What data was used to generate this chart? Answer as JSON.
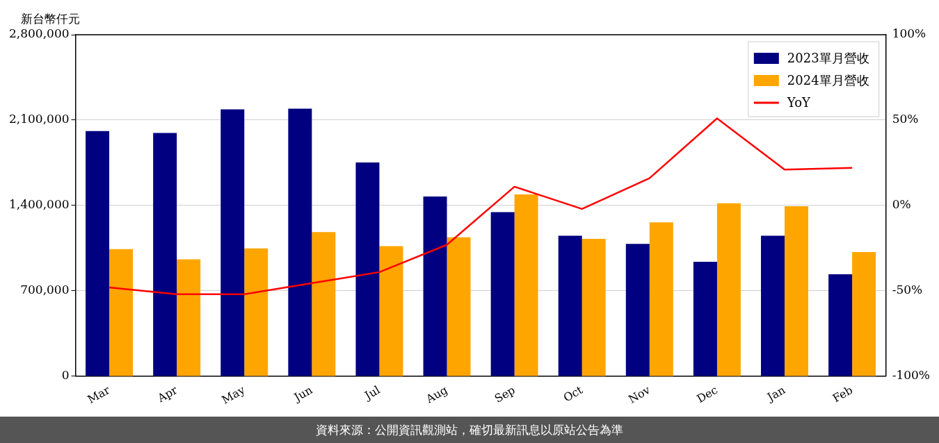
{
  "chart_data": {
    "type": "bar",
    "ylabel": "新台幣仟元",
    "categories": [
      "Mar",
      "Apr",
      "May",
      "Jun",
      "Jul",
      "Aug",
      "Sep",
      "Oct",
      "Nov",
      "Dec",
      "Jan",
      "Feb"
    ],
    "series": [
      {
        "name": "2023單月營收",
        "color": "#000080",
        "values": [
          2010000,
          1994000,
          2188000,
          2194000,
          1752000,
          1473000,
          1345000,
          1152000,
          1085000,
          939000,
          1152000,
          836000
        ]
      },
      {
        "name": "2024單月營收",
        "color": "#ffa500",
        "values": [
          1042000,
          958000,
          1048000,
          1182000,
          1067000,
          1139000,
          1491000,
          1127000,
          1261000,
          1418000,
          1394000,
          1018000
        ]
      },
      {
        "name": "YoY",
        "type": "line",
        "axis": "y2",
        "color": "#ff0000",
        "values": [
          -48,
          -52,
          -52,
          -45.5,
          -39,
          -23,
          11,
          -2,
          16,
          51,
          21,
          22
        ]
      }
    ],
    "ylim": [
      0,
      2800000
    ],
    "yticks": [
      {
        "value": 0,
        "label": "0"
      },
      {
        "value": 700000,
        "label": "700,000"
      },
      {
        "value": 1400000,
        "label": "1,400,000"
      },
      {
        "value": 2100000,
        "label": "2,100,000"
      },
      {
        "value": 2800000,
        "label": "2,800,000"
      }
    ],
    "y2lim": [
      -100,
      100
    ],
    "y2ticks": [
      {
        "value": -100,
        "label": "-100%"
      },
      {
        "value": -50,
        "label": "-50%"
      },
      {
        "value": 0,
        "label": "0%"
      },
      {
        "value": 50,
        "label": "50%"
      },
      {
        "value": 100,
        "label": "100%"
      }
    ],
    "grid": "y",
    "legend": "top right",
    "marker": "none",
    "line_style": "solid",
    "annotations": [
      "資料來源：公開資訊觀測站，確切最新訊息以原站公告為準"
    ]
  }
}
